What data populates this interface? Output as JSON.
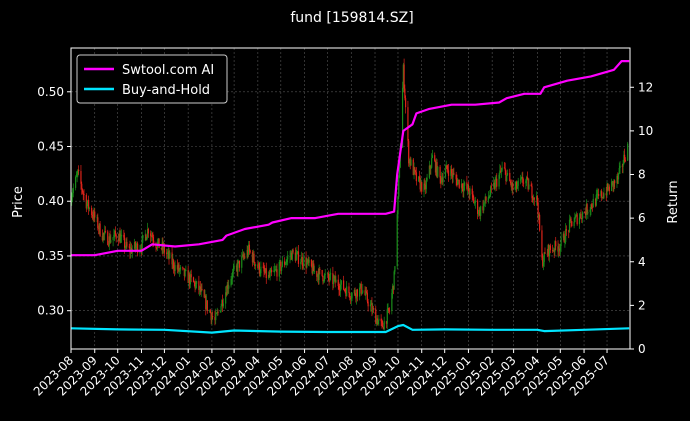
{
  "chart_data": {
    "type": "line",
    "title": "fund [159814.SZ]",
    "ylabel_left": "Price",
    "ylabel_right": "Return",
    "ylim_left": [
      0.265,
      0.54
    ],
    "ylim_right": [
      0,
      13.8
    ],
    "yticks_left": [
      0.3,
      0.35,
      0.4,
      0.45,
      0.5
    ],
    "yticks_left_labels": [
      "0.30",
      "0.35",
      "0.40",
      "0.45",
      "0.50"
    ],
    "yticks_right": [
      0,
      2,
      4,
      6,
      8,
      10,
      12
    ],
    "yticks_right_labels": [
      "0",
      "2",
      "4",
      "6",
      "8",
      "10",
      "12"
    ],
    "xlim": [
      "2023-08-01",
      "2025-07-31"
    ],
    "xtick_labels": [
      "2023-08",
      "2023-09",
      "2023-10",
      "2023-11",
      "2023-12",
      "2024-01",
      "2024-02",
      "2024-03",
      "2024-04",
      "2024-05",
      "2024-06",
      "2024-07",
      "2024-08",
      "2024-09",
      "2024-10",
      "2024-11",
      "2024-12",
      "2025-01",
      "2025-02",
      "2025-03",
      "2025-04",
      "2025-05",
      "2025-06",
      "2025-07"
    ],
    "grid": true,
    "legend_position": "top-left",
    "colors": {
      "up": "#1a8c1a",
      "down": "#e0241a",
      "swtool": "#ff00ff",
      "bh": "#00e5ff",
      "grid": "#555555"
    },
    "price_series": {
      "name": "",
      "x": [
        "2023-08-01",
        "2023-08-10",
        "2023-08-20",
        "2023-09-01",
        "2023-09-10",
        "2023-09-20",
        "2023-10-01",
        "2023-10-15",
        "2023-11-01",
        "2023-11-10",
        "2023-11-20",
        "2023-12-01",
        "2023-12-15",
        "2024-01-01",
        "2024-01-15",
        "2024-01-25",
        "2024-02-05",
        "2024-02-15",
        "2024-02-25",
        "2024-03-10",
        "2024-03-20",
        "2024-04-01",
        "2024-04-15",
        "2024-05-01",
        "2024-05-15",
        "2024-06-01",
        "2024-06-15",
        "2024-07-01",
        "2024-07-15",
        "2024-08-01",
        "2024-08-15",
        "2024-09-01",
        "2024-09-10",
        "2024-09-20",
        "2024-09-26",
        "2024-10-01",
        "2024-10-08",
        "2024-10-15",
        "2024-10-25",
        "2024-11-05",
        "2024-11-15",
        "2024-11-25",
        "2024-12-05",
        "2024-12-15",
        "2025-01-01",
        "2025-01-15",
        "2025-02-01",
        "2025-02-15",
        "2025-03-01",
        "2025-03-15",
        "2025-04-01",
        "2025-04-07",
        "2025-04-15",
        "2025-05-01",
        "2025-05-15",
        "2025-06-01",
        "2025-06-15",
        "2025-07-01",
        "2025-07-15",
        "2025-07-28"
      ],
      "y": [
        0.405,
        0.425,
        0.4,
        0.385,
        0.37,
        0.365,
        0.37,
        0.355,
        0.36,
        0.375,
        0.362,
        0.355,
        0.34,
        0.33,
        0.32,
        0.305,
        0.29,
        0.31,
        0.33,
        0.345,
        0.355,
        0.34,
        0.33,
        0.34,
        0.352,
        0.345,
        0.335,
        0.33,
        0.325,
        0.315,
        0.32,
        0.295,
        0.285,
        0.3,
        0.33,
        0.4,
        0.52,
        0.44,
        0.42,
        0.41,
        0.44,
        0.42,
        0.43,
        0.42,
        0.41,
        0.39,
        0.41,
        0.43,
        0.41,
        0.42,
        0.4,
        0.345,
        0.355,
        0.36,
        0.38,
        0.39,
        0.4,
        0.41,
        0.42,
        0.45
      ]
    },
    "series": [
      {
        "name": "Swtool.com AI",
        "x": [
          "2023-08-01",
          "2023-09-01",
          "2023-10-01",
          "2023-11-01",
          "2023-11-15",
          "2023-12-15",
          "2024-01-15",
          "2024-02-15",
          "2024-02-20",
          "2024-03-15",
          "2024-04-15",
          "2024-04-20",
          "2024-05-15",
          "2024-06-15",
          "2024-07-15",
          "2024-08-15",
          "2024-09-15",
          "2024-09-26",
          "2024-09-30",
          "2024-10-08",
          "2024-10-20",
          "2024-10-25",
          "2024-11-10",
          "2024-12-10",
          "2025-01-10",
          "2025-02-10",
          "2025-02-20",
          "2025-03-15",
          "2025-04-05",
          "2025-04-10",
          "2025-05-10",
          "2025-06-10",
          "2025-07-10",
          "2025-07-20",
          "2025-07-30"
        ],
        "y": [
          4.3,
          4.3,
          4.5,
          4.5,
          4.8,
          4.7,
          4.8,
          5.0,
          5.2,
          5.5,
          5.7,
          5.8,
          6.0,
          6.0,
          6.2,
          6.2,
          6.2,
          6.3,
          8.0,
          10.0,
          10.3,
          10.8,
          11.0,
          11.2,
          11.2,
          11.3,
          11.5,
          11.7,
          11.7,
          12.0,
          12.3,
          12.5,
          12.8,
          13.2,
          13.2
        ]
      },
      {
        "name": "Buy-and-Hold",
        "x": [
          "2023-08-01",
          "2023-10-01",
          "2023-12-01",
          "2024-02-01",
          "2024-03-01",
          "2024-05-01",
          "2024-07-01",
          "2024-09-15",
          "2024-10-01",
          "2024-10-08",
          "2024-10-20",
          "2024-12-01",
          "2025-02-01",
          "2025-04-01",
          "2025-04-10",
          "2025-06-01",
          "2025-07-30"
        ],
        "y": [
          0.95,
          0.9,
          0.88,
          0.75,
          0.85,
          0.8,
          0.78,
          0.78,
          1.05,
          1.1,
          0.88,
          0.9,
          0.88,
          0.88,
          0.82,
          0.88,
          0.95
        ]
      }
    ]
  }
}
